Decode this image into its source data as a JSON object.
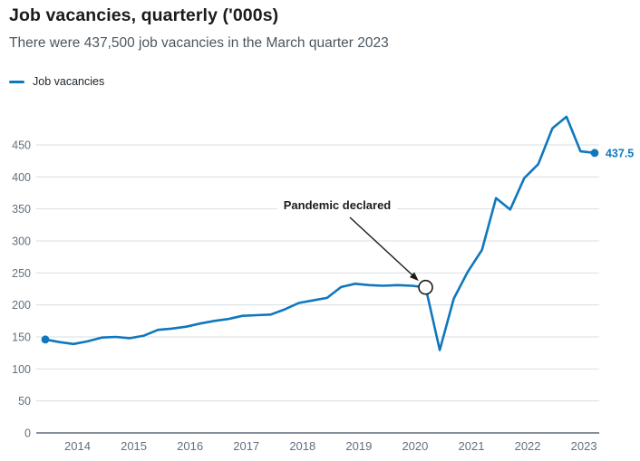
{
  "header": {
    "title": "Job vacancies, quarterly ('000s)",
    "subtitle": "There were 437,500 job vacancies in the March quarter 2023"
  },
  "legend": {
    "items": [
      {
        "label": "Job vacancies",
        "color": "#1077bd"
      }
    ]
  },
  "colors": {
    "line": "#1077bd",
    "marker": "#1077bd",
    "end_label": "#0d7abc",
    "grid": "#dadfe3",
    "axis": "#5d6b7a",
    "tick_label": "#61707f",
    "annotation": "#1b1b1b",
    "title": "#1c1b1c",
    "subtitle": "#4c565e"
  },
  "chart_data": {
    "type": "line",
    "title": "Job vacancies, quarterly ('000s)",
    "subtitle": "There were 437,500 job vacancies in the March quarter 2023",
    "legend_position": "top-left",
    "grid": "horizontal",
    "x": [
      "Jun 2013",
      "Sep 2013",
      "Dec 2013",
      "Mar 2014",
      "Jun 2014",
      "Sep 2014",
      "Dec 2014",
      "Mar 2015",
      "Jun 2015",
      "Sep 2015",
      "Dec 2015",
      "Mar 2016",
      "Jun 2016",
      "Sep 2016",
      "Dec 2016",
      "Mar 2017",
      "Jun 2017",
      "Sep 2017",
      "Dec 2017",
      "Mar 2018",
      "Jun 2018",
      "Sep 2018",
      "Dec 2018",
      "Mar 2019",
      "Jun 2019",
      "Sep 2019",
      "Dec 2019",
      "Mar 2020",
      "Jun 2020",
      "Sep 2020",
      "Dec 2020",
      "Mar 2021",
      "Jun 2021",
      "Sep 2021",
      "Dec 2021",
      "Mar 2022",
      "Jun 2022",
      "Sep 2022",
      "Dec 2022",
      "Mar 2023"
    ],
    "series": [
      {
        "name": "Job vacancies",
        "values": [
          146,
          142,
          139,
          143,
          149,
          150,
          148,
          152,
          161,
          163,
          166,
          171,
          175,
          178,
          183,
          184,
          185,
          193,
          203,
          207,
          211,
          228,
          233,
          231,
          230,
          231,
          230,
          227.5,
          129.5,
          210,
          252,
          286,
          367,
          349,
          398,
          420,
          476,
          494,
          440,
          437.5
        ]
      }
    ],
    "x_tick_labels": [
      "2014",
      "2015",
      "2016",
      "2017",
      "2018",
      "2019",
      "2020",
      "2021",
      "2022",
      "2023"
    ],
    "y_ticks": [
      0,
      50,
      100,
      150,
      200,
      250,
      300,
      350,
      400,
      450
    ],
    "ylim": [
      0,
      500
    ],
    "end_point_label": "437.5",
    "annotation": {
      "text": "Pandemic declared",
      "target_x": "Mar 2020",
      "target_value": 227.5
    }
  }
}
